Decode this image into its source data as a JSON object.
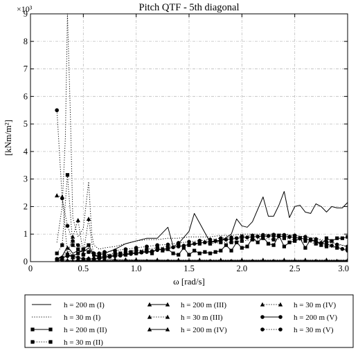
{
  "chart_data": {
    "type": "line",
    "title": "Pitch QTF - 5th diagonal",
    "xlabel": "ω [rad/s]",
    "ylabel": "[kNm/m²]",
    "y_multiplier": "×10³",
    "xlim": [
      0,
      3.0
    ],
    "ylim": [
      0,
      9
    ],
    "x_ticks": [
      "0",
      "0.5",
      "1.0",
      "1.5",
      "2.0",
      "2.5",
      "3.0"
    ],
    "y_ticks": [
      "0",
      "1",
      "2",
      "3",
      "4",
      "5",
      "6",
      "7",
      "8",
      "9"
    ],
    "grid": true,
    "legend_position": "bottom",
    "series": [
      {
        "name": "h = 200 m (I)",
        "style": "solid",
        "marker": "none",
        "x": [
          0.25,
          0.3,
          0.35,
          0.4,
          0.45,
          0.5,
          0.55,
          0.6,
          0.65,
          0.7,
          0.8,
          0.9,
          1.0,
          1.1,
          1.2,
          1.3,
          1.35,
          1.4,
          1.5,
          1.55,
          1.6,
          1.7,
          1.8,
          1.9,
          1.95,
          2.0,
          2.05,
          2.1,
          2.2,
          2.25,
          2.3,
          2.35,
          2.4,
          2.45,
          2.5,
          2.55,
          2.6,
          2.65,
          2.7,
          2.75,
          2.8,
          2.85,
          2.9,
          2.95,
          3.0
        ],
        "y": [
          0.1,
          0.2,
          0.55,
          0.3,
          0.4,
          0.35,
          0.5,
          0.2,
          0.25,
          0.3,
          0.45,
          0.65,
          0.75,
          0.85,
          0.85,
          1.25,
          0.55,
          0.65,
          1.1,
          1.75,
          1.4,
          0.7,
          0.75,
          1.0,
          1.55,
          1.3,
          1.25,
          1.45,
          2.35,
          1.65,
          1.65,
          2.05,
          2.55,
          1.6,
          2.0,
          2.05,
          1.8,
          1.75,
          2.1,
          2.0,
          1.8,
          2.0,
          1.95,
          1.95,
          2.15
        ]
      },
      {
        "name": "h = 30 m (I)",
        "style": "dotted",
        "marker": "none",
        "x": [
          0.25,
          0.3,
          0.33,
          0.35,
          0.38,
          0.4,
          0.45,
          0.5,
          0.55,
          0.58,
          0.6,
          0.65,
          0.7,
          0.8,
          0.9,
          1.0,
          1.1,
          1.2,
          1.3,
          1.4,
          1.5,
          1.6,
          1.7,
          1.8,
          1.9,
          2.0,
          2.1,
          2.2,
          2.3,
          2.4,
          2.5,
          2.6,
          2.7,
          2.8,
          2.9,
          3.0
        ],
        "y": [
          0.7,
          2.0,
          4.5,
          9.0,
          5.0,
          1.6,
          0.9,
          1.2,
          2.9,
          1.0,
          0.6,
          0.45,
          0.5,
          0.55,
          0.65,
          0.75,
          0.8,
          0.8,
          0.85,
          0.85,
          0.9,
          0.9,
          0.9,
          0.95,
          0.95,
          1.0,
          1.0,
          1.0,
          1.0,
          1.0,
          0.95,
          0.9,
          0.85,
          0.75,
          0.65,
          0.55
        ]
      },
      {
        "name": "h = 200 m (II)",
        "style": "solid",
        "marker": "square",
        "x": [
          0.25,
          0.3,
          0.35,
          0.4,
          0.45,
          0.5,
          0.55,
          0.6,
          0.65,
          0.7,
          0.75,
          0.8,
          0.85,
          0.9,
          0.95,
          1.0,
          1.05,
          1.1,
          1.15,
          1.2,
          1.25,
          1.3,
          1.35,
          1.4,
          1.45,
          1.5,
          1.55,
          1.6,
          1.65,
          1.7,
          1.75,
          1.8,
          1.85,
          1.9,
          1.95,
          2.0,
          2.05,
          2.1,
          2.15,
          2.2,
          2.25,
          2.3,
          2.35,
          2.4,
          2.45,
          2.5,
          2.55,
          2.6,
          2.65,
          2.7,
          2.75,
          2.8,
          2.85,
          2.9,
          2.95,
          3.0
        ],
        "y": [
          0.05,
          0.1,
          0.25,
          0.2,
          0.3,
          0.45,
          0.6,
          0.25,
          0.15,
          0.2,
          0.2,
          0.25,
          0.3,
          0.25,
          0.35,
          0.3,
          0.35,
          0.4,
          0.3,
          0.5,
          0.4,
          0.45,
          0.3,
          0.25,
          0.5,
          0.25,
          0.4,
          0.3,
          0.35,
          0.3,
          0.35,
          0.4,
          0.6,
          0.4,
          0.7,
          0.5,
          0.55,
          0.85,
          0.7,
          0.9,
          0.65,
          0.6,
          0.95,
          0.55,
          0.7,
          0.75,
          0.85,
          0.5,
          0.8,
          0.75,
          0.6,
          0.85,
          0.75,
          0.85,
          0.85,
          0.9
        ]
      },
      {
        "name": "h = 30 m (II)",
        "style": "dotted",
        "marker": "square",
        "x": [
          0.25,
          0.3,
          0.35,
          0.4,
          0.45,
          0.5,
          0.55,
          0.6,
          0.65,
          0.7,
          0.8,
          0.9,
          1.0,
          1.1,
          1.2,
          1.3,
          1.4,
          1.5,
          1.6,
          1.7,
          1.8,
          1.9,
          2.0,
          2.1,
          2.2,
          2.3,
          2.4,
          2.5,
          2.6,
          2.7,
          2.8,
          2.9,
          3.0
        ],
        "y": [
          0.3,
          0.6,
          3.15,
          0.6,
          0.45,
          0.25,
          0.35,
          0.25,
          0.2,
          0.25,
          0.3,
          0.35,
          0.4,
          0.45,
          0.5,
          0.55,
          0.6,
          0.6,
          0.65,
          0.65,
          0.7,
          0.7,
          0.75,
          0.8,
          0.85,
          0.8,
          0.85,
          0.8,
          0.75,
          0.65,
          0.55,
          0.5,
          0.45
        ]
      },
      {
        "name": "h = 200 m (III)",
        "style": "solid",
        "marker": "triangle",
        "x": [
          0.25,
          0.3,
          0.35,
          0.4,
          0.45,
          0.5,
          0.55,
          0.6,
          0.7,
          0.8,
          0.9,
          1.0,
          1.1,
          1.2,
          1.3,
          1.4,
          1.5,
          1.6,
          1.7,
          1.8,
          1.9,
          2.0,
          2.1,
          2.2,
          2.3,
          2.4,
          2.5,
          2.6,
          2.7,
          2.8,
          2.9,
          3.0
        ],
        "y": [
          0.0,
          0.0,
          0.02,
          0.0,
          0.02,
          0.03,
          0.02,
          0.02,
          0.02,
          0.02,
          0.02,
          0.02,
          0.02,
          0.02,
          0.02,
          0.02,
          0.02,
          0.02,
          0.02,
          0.02,
          0.02,
          0.02,
          0.02,
          0.02,
          0.02,
          0.02,
          0.02,
          0.02,
          0.02,
          0.02,
          0.02,
          0.02
        ]
      },
      {
        "name": "h = 30 m (III)",
        "style": "dotted",
        "marker": "triangle",
        "x": [
          0.25,
          0.3,
          0.35,
          0.4,
          0.45,
          0.5,
          0.55,
          0.6,
          0.7,
          0.8,
          0.9,
          1.0,
          1.2,
          1.4,
          1.6,
          1.8,
          2.0,
          2.2,
          2.4,
          2.6,
          2.8,
          3.0
        ],
        "y": [
          2.4,
          2.35,
          0.3,
          0.9,
          1.5,
          0.3,
          1.55,
          0.15,
          0.1,
          0.08,
          0.07,
          0.06,
          0.06,
          0.05,
          0.05,
          0.05,
          0.05,
          0.05,
          0.05,
          0.05,
          0.05,
          0.05
        ]
      },
      {
        "name": "h = 200 m (IV)",
        "style": "solid",
        "marker": "triangle",
        "x": [
          0.25,
          0.3,
          0.35,
          0.4,
          0.45,
          0.5,
          0.55,
          0.6,
          0.7,
          0.8,
          0.9,
          1.0,
          1.2,
          1.4,
          1.6,
          1.8,
          2.0,
          2.2,
          2.4,
          2.6,
          2.8,
          3.0
        ],
        "y": [
          0.02,
          0.05,
          0.05,
          0.03,
          0.04,
          0.05,
          0.05,
          0.04,
          0.04,
          0.04,
          0.04,
          0.04,
          0.04,
          0.04,
          0.04,
          0.04,
          0.04,
          0.04,
          0.04,
          0.04,
          0.04,
          0.04
        ]
      },
      {
        "name": "h = 30 m (IV)",
        "style": "dotted",
        "marker": "triangle",
        "x": [
          0.25,
          0.3,
          0.35,
          0.4,
          0.45,
          0.5,
          0.55,
          0.6,
          0.7,
          0.8,
          0.9,
          1.0,
          1.2,
          1.4,
          1.6,
          1.8,
          2.0,
          2.2,
          2.4,
          2.6,
          2.8,
          3.0
        ],
        "y": [
          0.05,
          0.1,
          0.5,
          0.15,
          0.1,
          0.1,
          0.12,
          0.08,
          0.08,
          0.07,
          0.07,
          0.07,
          0.06,
          0.06,
          0.06,
          0.06,
          0.06,
          0.06,
          0.06,
          0.06,
          0.06,
          0.06
        ]
      },
      {
        "name": "h = 200 m (V)",
        "style": "solid",
        "marker": "circle",
        "x": [
          0.25,
          0.3,
          0.35,
          0.4,
          0.45,
          0.5,
          0.55,
          0.6,
          0.65,
          0.7,
          0.75,
          0.8,
          0.85,
          0.9,
          0.95,
          1.0,
          1.05,
          1.1,
          1.15,
          1.2,
          1.25,
          1.3,
          1.35,
          1.4,
          1.45,
          1.5,
          1.55,
          1.6,
          1.65,
          1.7,
          1.75,
          1.8,
          1.85,
          1.9,
          1.95,
          2.0,
          2.05,
          2.1,
          2.15,
          2.2,
          2.25,
          2.3,
          2.35,
          2.4,
          2.45,
          2.5,
          2.55,
          2.6,
          2.65,
          2.7,
          2.75,
          2.8,
          2.85,
          2.9,
          2.95,
          3.0
        ],
        "y": [
          0.1,
          0.15,
          0.2,
          0.2,
          0.15,
          0.1,
          0.1,
          0.1,
          0.12,
          0.15,
          0.18,
          0.2,
          0.22,
          0.25,
          0.28,
          0.3,
          0.33,
          0.35,
          0.38,
          0.42,
          0.45,
          0.48,
          0.52,
          0.55,
          0.58,
          0.62,
          0.65,
          0.68,
          0.7,
          0.73,
          0.75,
          0.78,
          0.8,
          0.82,
          0.85,
          0.87,
          0.88,
          0.9,
          0.91,
          0.92,
          0.93,
          0.93,
          0.92,
          0.91,
          0.9,
          0.88,
          0.85,
          0.82,
          0.78,
          0.73,
          0.68,
          0.63,
          0.58,
          0.52,
          0.46,
          0.4
        ]
      },
      {
        "name": "h = 30 m (V)",
        "style": "dotted",
        "marker": "circle",
        "x": [
          0.25,
          0.3,
          0.35,
          0.4,
          0.45,
          0.5,
          0.55,
          0.6,
          0.65,
          0.7,
          0.8,
          0.9,
          1.0,
          1.1,
          1.2,
          1.3,
          1.4,
          1.5,
          1.6,
          1.7,
          1.8,
          1.9,
          2.0,
          2.1,
          2.2,
          2.3,
          2.4,
          2.5,
          2.6,
          2.7,
          2.8,
          2.9,
          3.0
        ],
        "y": [
          5.5,
          2.3,
          1.3,
          0.75,
          0.6,
          0.45,
          0.35,
          0.3,
          0.3,
          0.35,
          0.4,
          0.45,
          0.5,
          0.55,
          0.6,
          0.62,
          0.68,
          0.72,
          0.76,
          0.8,
          0.85,
          0.88,
          0.92,
          0.95,
          0.97,
          0.98,
          0.97,
          0.95,
          0.9,
          0.82,
          0.72,
          0.62,
          0.55
        ]
      }
    ]
  }
}
